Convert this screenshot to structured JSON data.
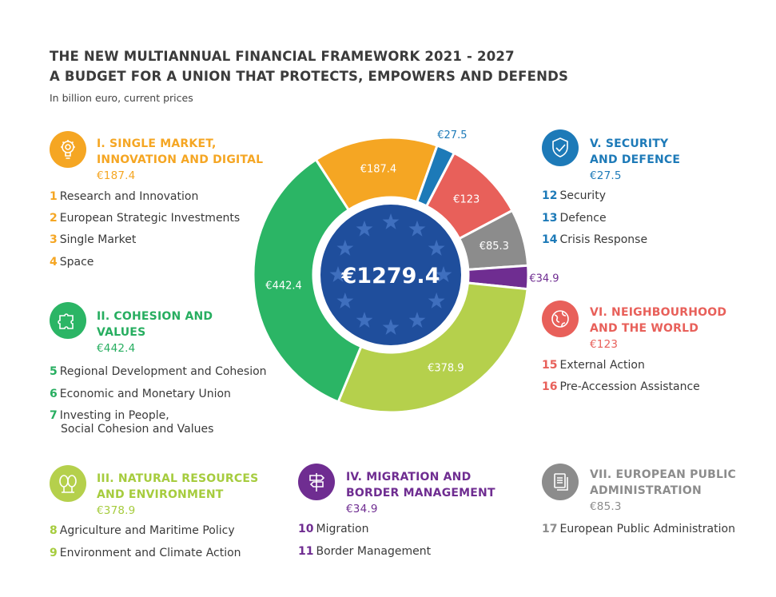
{
  "header": {
    "title_line1": "THE NEW MULTIANNUAL FINANCIAL FRAMEWORK 2021 - 2027",
    "title_line2": "A BUDGET FOR A UNION THAT PROTECTS, EMPOWERS AND DEFENDS",
    "subtitle": "In billion euro, current prices"
  },
  "chart_data": {
    "type": "pie",
    "variant": "donut",
    "total_label": "€1279.4",
    "categories": [
      "I. SINGLE MARKET, INNOVATION AND DIGITAL",
      "V. SECURITY AND DEFENCE",
      "VI. NEIGHBOURHOOD AND THE WORLD",
      "VII. EUROPEAN PUBLIC ADMINISTRATION",
      "IV. MIGRATION AND BORDER MANAGEMENT",
      "III. NATURAL RESOURCES AND ENVIRONMENT",
      "II. COHESION AND VALUES"
    ],
    "values": [
      187.4,
      27.5,
      123,
      85.3,
      34.9,
      378.9,
      442.4
    ],
    "labels": [
      "€187.4",
      "€27.5",
      "€123",
      "€85.3",
      "€34.9",
      "€378.9",
      "€442.4"
    ],
    "colors": [
      "#f5a623",
      "#1d7ab8",
      "#e8605a",
      "#8c8c8c",
      "#6f2d91",
      "#b5d04c",
      "#2bb565"
    ],
    "center_color": "#1f4e9c"
  },
  "headings": {
    "h1": {
      "line1": "I. SINGLE MARKET,",
      "line2": "INNOVATION AND DIGITAL",
      "amount": "€187.4"
    },
    "h2": {
      "line1": "II. COHESION AND",
      "line2": "VALUES",
      "amount": "€442.4"
    },
    "h3": {
      "line1": "III. NATURAL RESOURCES",
      "line2": "AND ENVIRONMENT",
      "amount": "€378.9"
    },
    "h4": {
      "line1": "IV. MIGRATION AND",
      "line2": "BORDER MANAGEMENT",
      "amount": "€34.9"
    },
    "h5": {
      "line1": "V. SECURITY",
      "line2": "AND DEFENCE",
      "amount": "€27.5"
    },
    "h6": {
      "line1": "VI. NEIGHBOURHOOD",
      "line2": "AND THE WORLD",
      "amount": "€123"
    },
    "h7": {
      "line1": "VII. EUROPEAN PUBLIC",
      "line2": "ADMINISTRATION",
      "amount": "€85.3"
    }
  },
  "items": {
    "i1": {
      "num": "1",
      "label": "Research and Innovation"
    },
    "i2": {
      "num": "2",
      "label": "European Strategic Investments"
    },
    "i3": {
      "num": "3",
      "label": "Single Market"
    },
    "i4": {
      "num": "4",
      "label": "Space"
    },
    "i5": {
      "num": "5",
      "label": "Regional Development and Cohesion"
    },
    "i6": {
      "num": "6",
      "label": "Economic and Monetary Union"
    },
    "i7": {
      "num": "7",
      "label": "Investing in People,",
      "label2": "Social Cohesion and Values"
    },
    "i8": {
      "num": "8",
      "label": "Agriculture and Maritime Policy"
    },
    "i9": {
      "num": "9",
      "label": "Environment and Climate Action"
    },
    "i10": {
      "num": "10",
      "label": "Migration"
    },
    "i11": {
      "num": "11",
      "label": "Border Management"
    },
    "i12": {
      "num": "12",
      "label": "Security"
    },
    "i13": {
      "num": "13",
      "label": "Defence"
    },
    "i14": {
      "num": "14",
      "label": "Crisis Response"
    },
    "i15": {
      "num": "15",
      "label": "External Action"
    },
    "i16": {
      "num": "16",
      "label": "Pre-Accession Assistance"
    },
    "i17": {
      "num": "17",
      "label": "European Public Administration"
    }
  },
  "icons": {
    "h1": "lightbulb-icon",
    "h2": "puzzle-icon",
    "h3": "trees-icon",
    "h4": "signpost-icon",
    "h5": "shield-icon",
    "h6": "globe-icon",
    "h7": "documents-icon"
  }
}
